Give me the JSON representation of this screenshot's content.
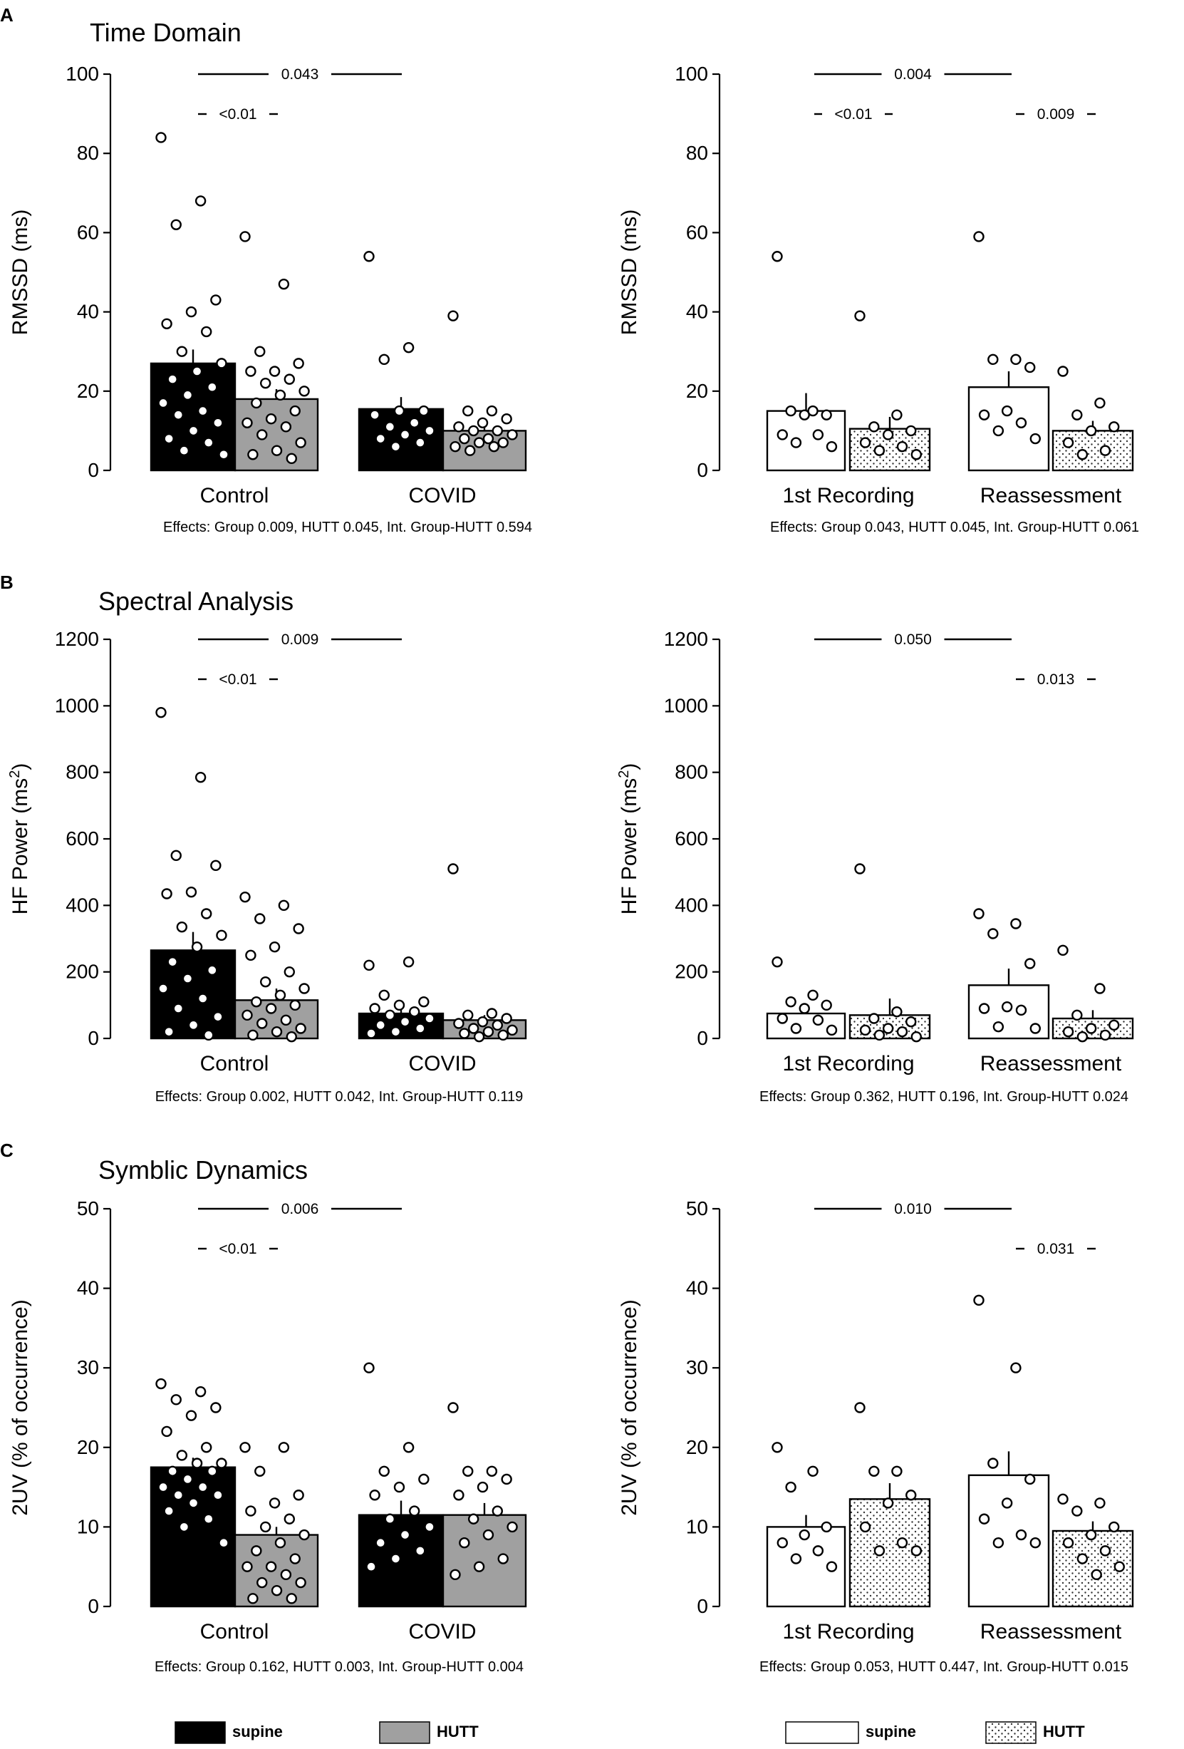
{
  "panels": [
    {
      "letter": "A",
      "title": "Time Domain"
    },
    {
      "letter": "B",
      "title": "Spectral Analysis"
    },
    {
      "letter": "C",
      "title": "Symblic Dynamics"
    }
  ],
  "legends": {
    "left": [
      {
        "label": "supine",
        "fill": "#000000",
        "pattern": "none"
      },
      {
        "label": "HUTT",
        "fill": "#a0a0a0",
        "pattern": "none"
      }
    ],
    "right": [
      {
        "label": "supine",
        "fill": "#ffffff",
        "pattern": "none"
      },
      {
        "label": "HUTT",
        "fill": "#ffffff",
        "pattern": "dots"
      }
    ]
  },
  "colors": {
    "supine_left": "#000000",
    "hutt_left": "#a0a0a0",
    "supine_right": "#ffffff",
    "hutt_right": "#ffffff"
  },
  "chart_data": [
    {
      "id": "A-left",
      "panel": "A",
      "side": "left",
      "type": "bar",
      "ylabel": "RMSSD (ms)",
      "ylim": [
        0,
        100
      ],
      "yticks": [
        0,
        20,
        40,
        60,
        80,
        100
      ],
      "categories": [
        "Control",
        "COVID"
      ],
      "series": [
        {
          "name": "supine",
          "values": [
            27,
            15.5
          ],
          "errors": [
            3.5,
            3
          ],
          "pattern": "none",
          "points": [
            [
              84,
              68,
              62,
              43,
              40,
              37,
              35,
              30,
              27,
              25,
              23,
              21,
              19,
              17,
              15,
              14,
              12,
              10,
              8,
              7,
              5,
              4
            ],
            [
              54,
              31,
              28,
              15,
              15,
              14,
              12,
              11,
              10,
              9,
              8,
              7,
              6
            ]
          ]
        },
        {
          "name": "HUTT",
          "values": [
            18,
            10
          ],
          "errors": [
            2.5,
            2
          ],
          "pattern": "none",
          "points": [
            [
              59,
              47,
              30,
              27,
              25,
              25,
              23,
              22,
              20,
              19,
              17,
              15,
              13,
              12,
              11,
              9,
              7,
              5,
              4,
              3
            ],
            [
              39,
              15,
              15,
              13,
              12,
              11,
              10,
              10,
              9,
              8,
              8,
              7,
              7,
              6,
              6,
              5
            ]
          ]
        }
      ],
      "comparisons": [
        {
          "label": "0.043",
          "level": "top",
          "span": "groups"
        },
        {
          "label": "<0.01",
          "level": "second",
          "span": 0
        }
      ],
      "effects": "Effects: Group 0.009, HUTT 0.045, Int. Group-HUTT 0.594"
    },
    {
      "id": "A-right",
      "panel": "A",
      "side": "right",
      "type": "bar",
      "ylabel": "RMSSD (ms)",
      "ylim": [
        0,
        100
      ],
      "yticks": [
        0,
        20,
        40,
        60,
        80,
        100
      ],
      "categories": [
        "1st Recording",
        "Reassessment"
      ],
      "series": [
        {
          "name": "supine",
          "values": [
            15,
            21
          ],
          "errors": [
            4.5,
            4
          ],
          "pattern": "none",
          "points": [
            [
              54,
              15,
              15,
              14,
              14,
              9,
              9,
              7,
              6
            ],
            [
              59,
              28,
              28,
              26,
              15,
              14,
              12,
              10,
              8
            ]
          ]
        },
        {
          "name": "HUTT",
          "values": [
            10.5,
            10
          ],
          "errors": [
            3,
            2.5
          ],
          "pattern": "dots",
          "points": [
            [
              39,
              14,
              11,
              10,
              9,
              7,
              6,
              5,
              4
            ],
            [
              25,
              17,
              14,
              11,
              10,
              7,
              5,
              4
            ]
          ]
        }
      ],
      "comparisons": [
        {
          "label": "0.004",
          "level": "top",
          "span": "groups"
        },
        {
          "label": "<0.01",
          "level": "second",
          "span": 0
        },
        {
          "label": "0.009",
          "level": "second",
          "span": 1
        }
      ],
      "effects": "Effects: Group 0.043, HUTT 0.045, Int. Group-HUTT 0.061"
    },
    {
      "id": "B-left",
      "panel": "B",
      "side": "left",
      "type": "bar",
      "ylabel": "HF Power (ms",
      "ylabel_sup": "2",
      "ylabel_end": ")",
      "ylim": [
        0,
        1200
      ],
      "yticks": [
        0,
        200,
        400,
        600,
        800,
        1000,
        1200
      ],
      "categories": [
        "Control",
        "COVID"
      ],
      "series": [
        {
          "name": "supine",
          "values": [
            265,
            75
          ],
          "errors": [
            55,
            15
          ],
          "pattern": "none",
          "points": [
            [
              980,
              785,
              550,
              520,
              440,
              435,
              375,
              335,
              310,
              275,
              230,
              205,
              180,
              150,
              120,
              90,
              65,
              40,
              20,
              10
            ],
            [
              220,
              230,
              130,
              110,
              100,
              90,
              80,
              70,
              60,
              50,
              40,
              30,
              20,
              15
            ]
          ]
        },
        {
          "name": "HUTT",
          "values": [
            115,
            55
          ],
          "errors": [
            35,
            15
          ],
          "pattern": "none",
          "points": [
            [
              425,
              400,
              360,
              330,
              275,
              250,
              200,
              170,
              150,
              130,
              110,
              100,
              90,
              70,
              55,
              45,
              30,
              20,
              10,
              5
            ],
            [
              510,
              75,
              70,
              60,
              50,
              45,
              40,
              30,
              25,
              20,
              15,
              10,
              5
            ]
          ]
        }
      ],
      "comparisons": [
        {
          "label": "0.009",
          "level": "top",
          "span": "groups"
        },
        {
          "label": "<0.01",
          "level": "second",
          "span": 0
        }
      ],
      "effects": "Effects: Group 0.002, HUTT 0.042, Int. Group-HUTT 0.119"
    },
    {
      "id": "B-right",
      "panel": "B",
      "side": "right",
      "type": "bar",
      "ylabel": "HF Power (ms",
      "ylabel_sup": "2",
      "ylabel_end": ")",
      "ylim": [
        0,
        1200
      ],
      "yticks": [
        0,
        200,
        400,
        600,
        800,
        1000,
        1200
      ],
      "categories": [
        "1st Recording",
        "Reassessment"
      ],
      "series": [
        {
          "name": "supine",
          "values": [
            75,
            160
          ],
          "errors": [
            25,
            50
          ],
          "pattern": "none",
          "points": [
            [
              230,
              130,
              110,
              100,
              90,
              60,
              55,
              30,
              25
            ],
            [
              375,
              345,
              315,
              225,
              95,
              90,
              85,
              35,
              30
            ]
          ]
        },
        {
          "name": "HUTT",
          "values": [
            70,
            60
          ],
          "errors": [
            50,
            25
          ],
          "pattern": "dots",
          "points": [
            [
              510,
              80,
              60,
              50,
              30,
              25,
              20,
              10,
              5
            ],
            [
              265,
              150,
              70,
              40,
              30,
              20,
              10,
              5
            ]
          ]
        }
      ],
      "comparisons": [
        {
          "label": "0.050",
          "level": "top",
          "span": "groups"
        },
        {
          "label": "0.013",
          "level": "second",
          "span": 1
        }
      ],
      "effects": "Effects: Group 0.362, HUTT 0.196, Int. Group-HUTT 0.024"
    },
    {
      "id": "C-left",
      "panel": "C",
      "side": "left",
      "type": "bar",
      "ylabel": "2UV (% of occurrence)",
      "ylim": [
        0,
        50
      ],
      "yticks": [
        0,
        10,
        20,
        30,
        40,
        50
      ],
      "categories": [
        "Control",
        "COVID"
      ],
      "series": [
        {
          "name": "supine",
          "values": [
            17.5,
            11.5
          ],
          "errors": [
            1.2,
            1.8
          ],
          "pattern": "none",
          "points": [
            [
              28,
              27,
              26,
              25,
              24,
              22,
              20,
              19,
              18,
              18,
              17,
              17,
              16,
              15,
              15,
              14,
              14,
              13,
              12,
              11,
              10,
              8
            ],
            [
              30,
              20,
              17,
              16,
              15,
              14,
              12,
              11,
              10,
              9,
              8,
              7,
              6,
              5
            ]
          ]
        },
        {
          "name": "HUTT",
          "values": [
            9,
            11.5
          ],
          "errors": [
            1,
            1.5
          ],
          "pattern": "none",
          "points": [
            [
              20,
              20,
              17,
              14,
              13,
              12,
              11,
              10,
              9,
              8,
              7,
              6,
              5,
              5,
              4,
              3,
              3,
              2,
              1,
              1
            ],
            [
              25,
              17,
              17,
              16,
              15,
              14,
              12,
              11,
              10,
              9,
              8,
              6,
              5,
              4
            ]
          ]
        }
      ],
      "comparisons": [
        {
          "label": "0.006",
          "level": "top",
          "span": "groups"
        },
        {
          "label": "<0.01",
          "level": "second",
          "span": 0
        }
      ],
      "effects": "Effects: Group 0.162, HUTT 0.003, Int. Group-HUTT 0.004"
    },
    {
      "id": "C-right",
      "panel": "C",
      "side": "right",
      "type": "bar",
      "ylabel": "2UV (% of occurrence)",
      "ylim": [
        0,
        50
      ],
      "yticks": [
        0,
        10,
        20,
        30,
        40,
        50
      ],
      "categories": [
        "1st Recording",
        "Reassessment"
      ],
      "series": [
        {
          "name": "supine",
          "values": [
            10,
            16.5
          ],
          "errors": [
            1.5,
            3
          ],
          "pattern": "none",
          "points": [
            [
              20,
              17,
              15,
              10,
              9,
              8,
              7,
              6,
              5
            ],
            [
              38.5,
              30,
              18,
              16,
              13,
              11,
              9,
              8,
              8
            ]
          ]
        },
        {
          "name": "HUTT",
          "values": [
            13.5,
            9.5
          ],
          "errors": [
            2,
            1.2
          ],
          "pattern": "dots",
          "points": [
            [
              25,
              17,
              17,
              14,
              13,
              10,
              8,
              7,
              7
            ],
            [
              13.5,
              13,
              12,
              10,
              9,
              8,
              7,
              6,
              5,
              4
            ]
          ]
        }
      ],
      "comparisons": [
        {
          "label": "0.010",
          "level": "top",
          "span": "groups"
        },
        {
          "label": "0.031",
          "level": "second",
          "span": 1
        }
      ],
      "effects": "Effects: Group 0.053, HUTT 0.447, Int. Group-HUTT 0.015"
    }
  ]
}
